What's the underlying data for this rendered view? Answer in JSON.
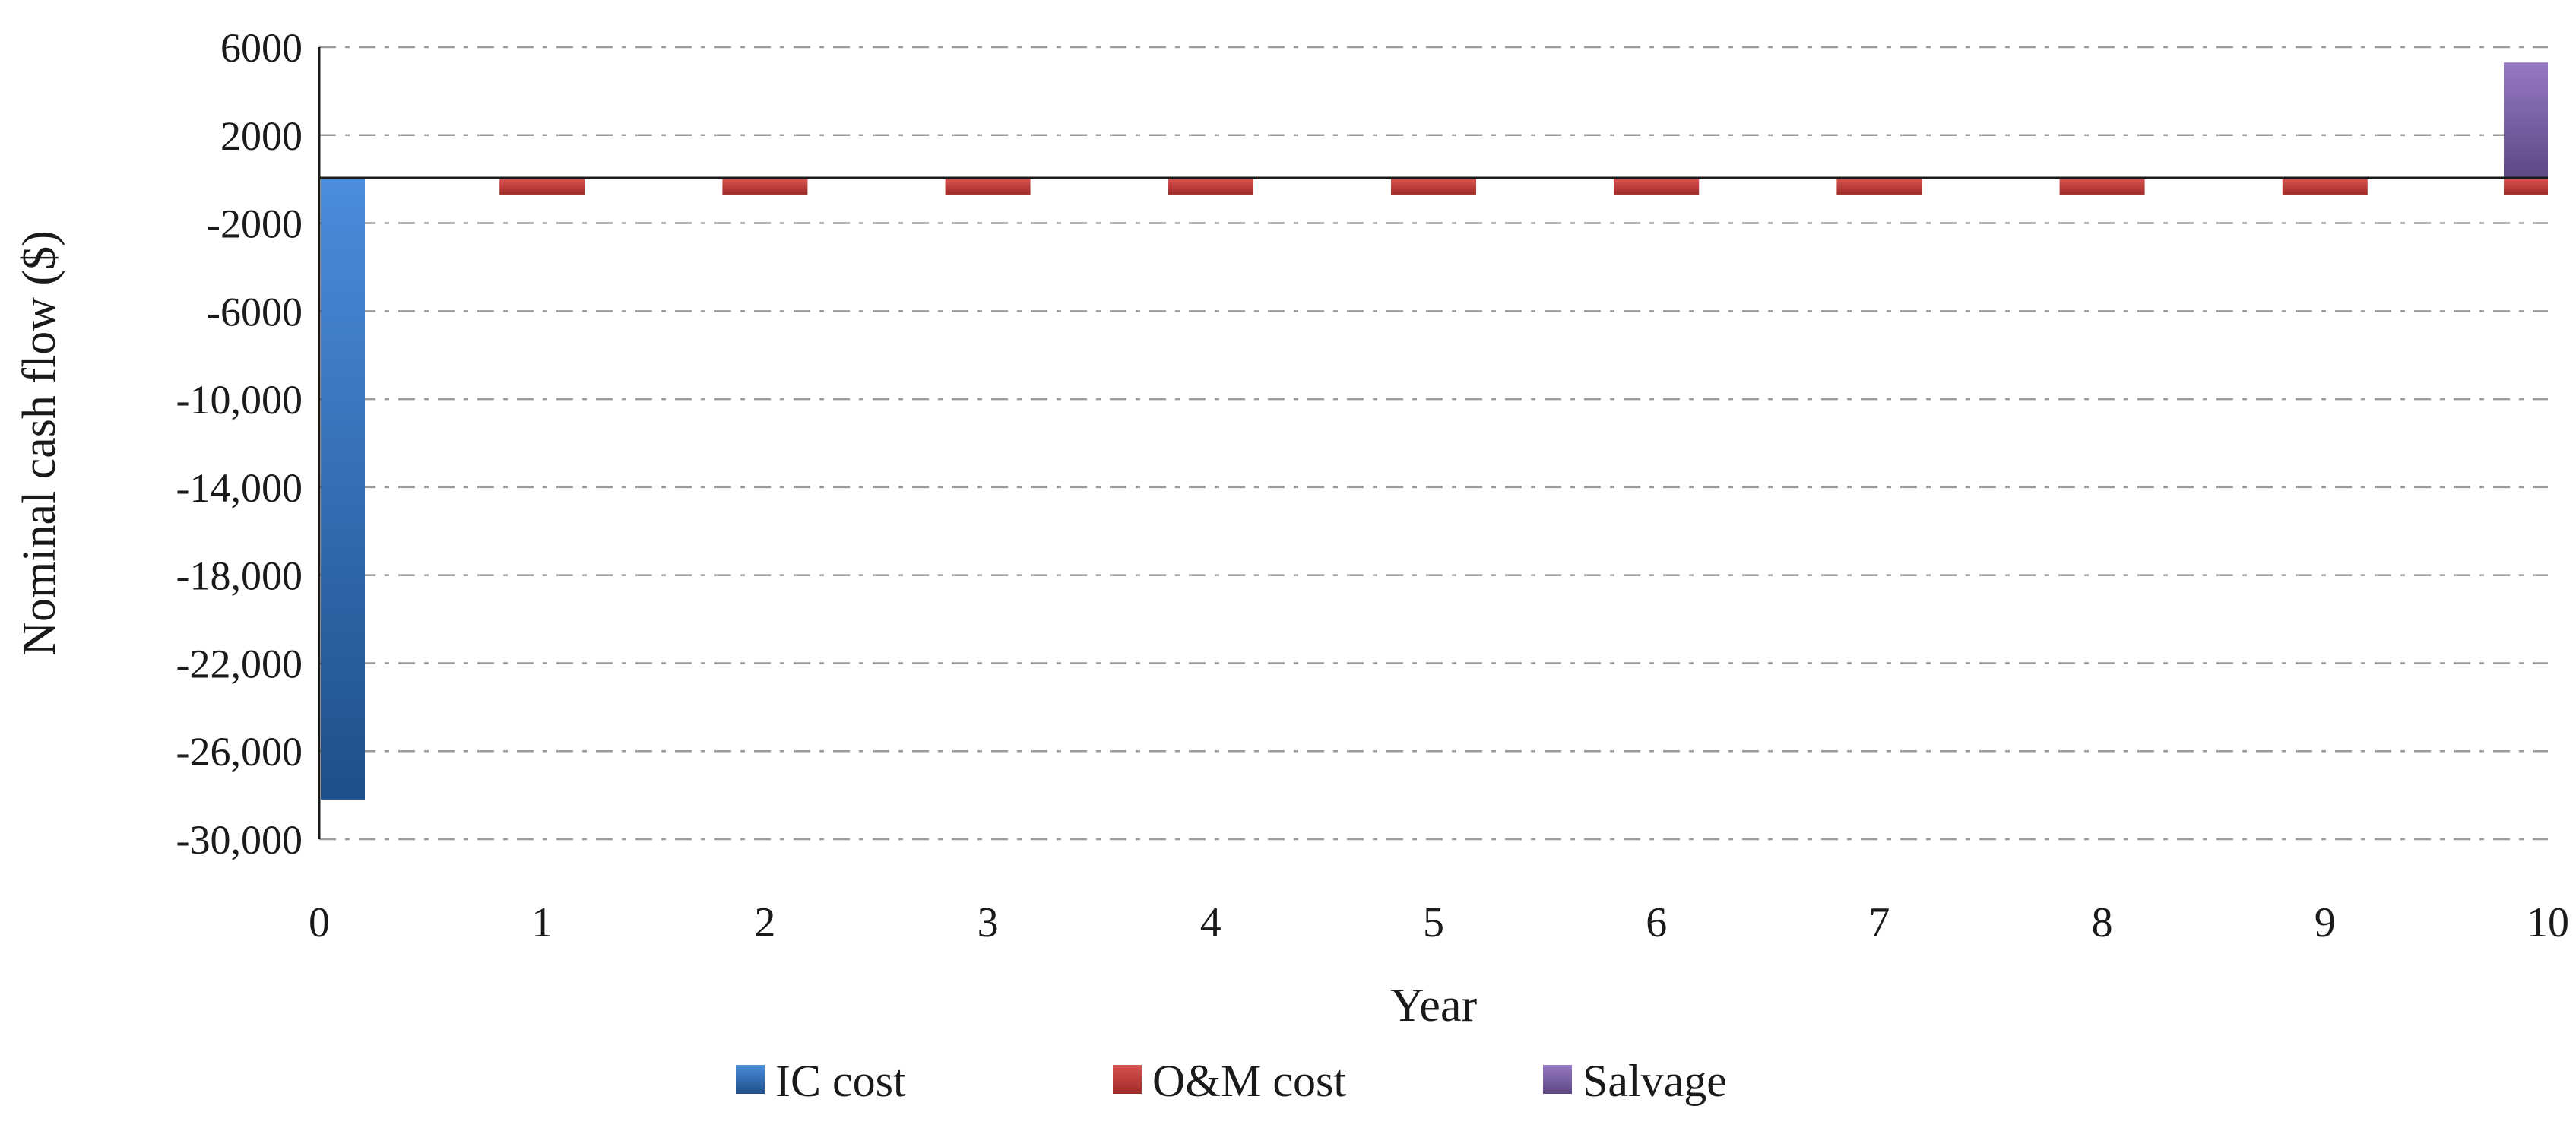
{
  "chart_data": {
    "type": "bar",
    "xlabel": "Year",
    "ylabel": "Nominal cash flow ($)",
    "categories": [
      "0",
      "1",
      "2",
      "3",
      "4",
      "5",
      "6",
      "7",
      "8",
      "9",
      "10"
    ],
    "ylim": [
      -30000,
      6000
    ],
    "yticks": [
      6000,
      2000,
      -2000,
      -6000,
      -10000,
      -14000,
      -18000,
      -22000,
      -26000,
      -30000
    ],
    "ytick_labels": [
      "6000",
      "2000",
      "-2000",
      "-6000",
      "-10,000",
      "-14,000",
      "-18,000",
      "-22,000",
      "-26,000",
      "-30,000"
    ],
    "grid": true,
    "legend_position": "bottom",
    "series": [
      {
        "name": "IC cost",
        "color": "#3a7cc7",
        "values": [
          -28200,
          0,
          0,
          0,
          0,
          0,
          0,
          0,
          0,
          0,
          0
        ]
      },
      {
        "name": "O&M cost",
        "color": "#c0504d",
        "values": [
          0,
          -700,
          -700,
          -700,
          -700,
          -700,
          -700,
          -700,
          -700,
          -700,
          -700
        ]
      },
      {
        "name": "Salvage",
        "color": "#8064a2",
        "values": [
          0,
          0,
          0,
          0,
          0,
          0,
          0,
          0,
          0,
          0,
          5300
        ]
      }
    ]
  }
}
